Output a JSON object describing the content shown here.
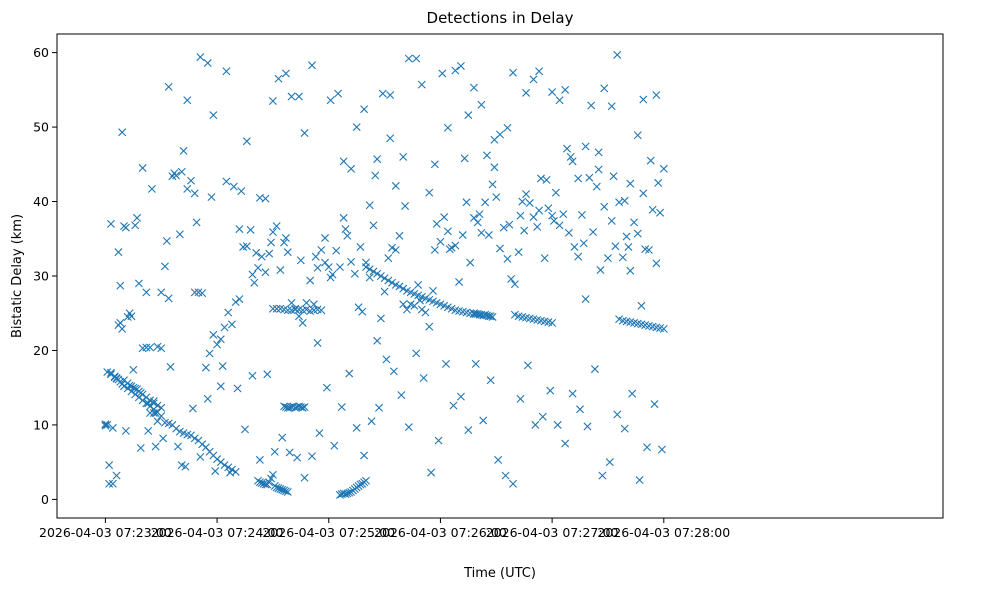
{
  "chart_data": {
    "type": "scatter",
    "title": "Detections in Delay",
    "xlabel": "Time (UTC)",
    "ylabel": "Bistatic Delay (km)",
    "x_unit": "seconds after 2026-04-03 07:23:00",
    "xlim": [
      -26,
      450
    ],
    "ylim": [
      -2.5,
      62.5
    ],
    "x_ticks": [
      {
        "value": 0,
        "label": "2026-04-03 07:23:00"
      },
      {
        "value": 60,
        "label": "2026-04-03 07:24:00"
      },
      {
        "value": 120,
        "label": "2026-04-03 07:25:00"
      },
      {
        "value": 180,
        "label": "2026-04-03 07:26:00"
      },
      {
        "value": 240,
        "label": "2026-04-03 07:27:00"
      },
      {
        "value": 300,
        "label": "2026-04-03 07:28:00"
      }
    ],
    "y_ticks": [
      0,
      10,
      20,
      30,
      40,
      50,
      60
    ],
    "marker": "x",
    "color": "#1f77b4",
    "grid": false,
    "legend": "none",
    "series": [
      {
        "x": [
          0,
          0,
          1,
          2,
          3,
          4,
          5,
          6,
          7,
          8,
          9,
          10,
          11,
          12,
          13,
          14,
          15,
          16,
          17,
          18,
          19,
          20,
          22,
          24,
          26,
          28,
          30,
          1,
          3,
          5,
          6,
          7,
          8,
          9,
          10,
          12,
          14,
          16,
          18,
          20,
          22,
          24,
          26,
          28,
          30,
          20,
          22,
          24,
          26,
          28,
          32,
          34,
          36,
          38,
          40,
          42,
          44,
          46,
          48,
          50,
          52,
          54,
          56,
          58,
          60,
          62,
          64,
          66,
          68,
          70,
          82,
          83,
          84,
          85,
          86,
          87,
          88,
          89,
          90,
          91,
          92,
          93,
          94,
          95,
          96,
          97,
          98,
          90,
          92,
          94,
          96,
          98,
          100,
          102,
          104,
          106,
          108,
          110,
          112,
          114,
          116,
          96,
          97,
          98,
          99,
          100,
          101,
          102,
          103,
          104,
          105,
          106,
          107,
          126,
          127,
          128,
          129,
          130,
          131,
          132,
          133,
          134,
          135,
          136,
          137,
          138,
          139,
          140,
          140,
          142,
          144,
          146,
          148,
          150,
          152,
          154,
          156,
          158,
          160,
          162,
          164,
          166,
          168,
          170,
          172,
          174,
          176,
          178,
          180,
          182,
          184,
          186,
          188,
          190,
          192,
          194,
          196,
          198,
          198,
          199,
          200,
          201,
          202,
          203,
          204,
          205,
          206,
          207,
          208,
          220,
          222,
          224,
          226,
          228,
          230,
          232,
          234,
          236,
          238,
          240,
          276,
          278,
          280,
          282,
          284,
          286,
          288,
          290,
          292,
          294,
          296,
          298,
          300,
          5,
          8,
          12,
          14,
          18,
          22,
          24,
          26,
          28,
          30,
          32,
          34,
          36,
          38,
          40,
          42,
          44,
          46,
          48,
          50,
          52,
          54,
          56,
          58,
          60,
          62,
          64,
          66,
          68,
          70,
          72,
          74,
          76,
          78,
          80,
          82,
          84,
          86,
          88,
          90,
          92,
          94,
          96,
          98,
          100,
          102,
          104,
          106,
          108,
          110,
          112,
          114,
          116,
          118,
          120,
          122,
          124,
          126,
          128,
          130,
          132,
          134,
          136,
          138,
          140,
          142,
          144,
          146,
          148,
          150,
          152,
          154,
          156,
          158,
          160,
          162,
          164,
          166,
          168,
          170,
          172,
          174,
          176,
          178,
          180,
          182,
          184,
          186,
          188,
          190,
          192,
          194,
          196,
          198,
          200,
          202,
          204,
          206,
          208,
          210,
          212,
          214,
          216,
          218,
          220,
          222,
          224,
          226,
          228,
          230,
          232,
          234,
          236,
          238,
          240,
          242,
          244,
          246,
          248,
          250,
          252,
          254,
          256,
          258,
          260,
          262,
          264,
          266,
          268,
          270,
          272,
          274,
          276,
          278,
          280,
          282,
          284,
          286,
          288,
          290,
          292,
          294,
          296,
          298,
          300,
          3,
          7,
          11,
          15,
          19,
          23,
          27,
          31,
          35,
          39,
          43,
          47,
          51,
          55,
          59,
          63,
          67,
          71,
          75,
          79,
          83,
          87,
          91,
          95,
          99,
          103,
          107,
          111,
          115,
          119,
          123,
          127,
          131,
          135,
          139,
          143,
          147,
          151,
          155,
          159,
          163,
          167,
          171,
          175,
          179,
          183,
          187,
          191,
          195,
          199,
          203,
          207,
          211,
          215,
          219,
          223,
          227,
          231,
          235,
          239,
          243,
          247,
          251,
          255,
          259,
          263,
          267,
          271,
          275,
          279,
          283,
          287,
          291,
          295,
          299,
          2,
          9,
          16,
          23,
          30,
          37,
          44,
          51,
          58,
          65,
          72,
          79,
          86,
          93,
          100,
          107,
          114,
          121,
          128,
          135,
          142,
          149,
          156,
          163,
          170,
          177,
          184,
          191,
          198,
          205,
          212,
          219,
          226,
          233,
          240,
          247,
          254,
          261,
          268,
          275,
          282,
          289,
          296,
          6,
          13,
          20,
          27,
          34,
          41,
          48,
          55,
          62,
          69,
          76,
          83,
          90,
          97,
          104,
          111,
          118,
          125,
          132,
          139,
          146,
          153,
          160,
          167,
          174,
          181,
          188,
          195,
          202,
          209,
          216,
          223,
          230,
          237,
          244,
          251,
          258,
          265,
          272,
          279,
          286,
          293,
          4,
          10,
          17,
          25,
          33,
          41,
          49,
          57,
          65,
          73,
          81,
          89,
          97,
          105,
          113,
          121,
          129,
          137,
          145,
          153,
          161,
          169,
          177,
          185,
          193,
          201,
          209,
          217,
          225,
          233,
          241,
          249,
          257,
          265,
          273,
          281,
          289,
          297
        ],
        "y": [
          10.1,
          9.9,
          17.1,
          4.6,
          16.8,
          2.1,
          16.4,
          16.2,
          23.4,
          28.7,
          22.9,
          16.0,
          36.5,
          15.6,
          15.3,
          15.2,
          15.0,
          14.9,
          14.8,
          14.5,
          14.3,
          14.1,
          13.7,
          13.3,
          12.9,
          12.6,
          12.3,
          10.0,
          17.0,
          16.5,
          16.3,
          16.1,
          15.8,
          15.5,
          15.2,
          14.9,
          14.5,
          14.1,
          13.7,
          13.3,
          12.9,
          12.5,
          12.1,
          11.7,
          11.2,
          20.3,
          20.4,
          20.4,
          11.6,
          10.5,
          10.3,
          10.2,
          10.0,
          9.5,
          9.1,
          8.9,
          8.7,
          8.6,
          8.2,
          7.9,
          7.4,
          7.0,
          6.4,
          5.9,
          5.4,
          5.0,
          4.6,
          4.3,
          4.0,
          3.7,
          2.5,
          2.3,
          2.2,
          2.1,
          2.0,
          2.0,
          2.3,
          2.8,
          3.3,
          1.8,
          1.6,
          1.5,
          1.4,
          1.3,
          1.2,
          1.1,
          1.0,
          25.6,
          25.6,
          25.6,
          25.5,
          25.4,
          25.4,
          25.5,
          25.5,
          25.4,
          25.5,
          25.3,
          25.4,
          25.5,
          25.4,
          12.5,
          12.4,
          12.3,
          12.3,
          12.4,
          12.5,
          12.3,
          12.4,
          12.5,
          12.4,
          12.3,
          12.4,
          0.6,
          0.7,
          0.8,
          0.7,
          0.8,
          0.9,
          1.0,
          1.2,
          1.4,
          1.6,
          1.8,
          2.0,
          2.1,
          2.3,
          2.5,
          31.2,
          30.9,
          30.6,
          30.3,
          30.0,
          29.7,
          29.4,
          29.1,
          28.8,
          28.6,
          28.3,
          28.0,
          27.8,
          27.6,
          27.4,
          27.2,
          27.0,
          26.8,
          26.6,
          26.4,
          26.2,
          26.0,
          25.8,
          25.6,
          25.4,
          25.3,
          25.2,
          25.1,
          25.0,
          24.9,
          25.0,
          24.9,
          24.9,
          24.8,
          24.8,
          24.7,
          24.8,
          24.7,
          24.6,
          24.6,
          24.5,
          24.8,
          24.6,
          24.5,
          24.4,
          24.3,
          24.2,
          24.1,
          24.0,
          23.9,
          23.8,
          23.7,
          24.2,
          24.0,
          23.9,
          23.8,
          23.7,
          23.6,
          23.5,
          23.4,
          23.3,
          23.2,
          23.1,
          23.0,
          22.9,
          16.5,
          23.7,
          24.5,
          24.6,
          29.0,
          27.8,
          11.6,
          13.2,
          20.5,
          20.3,
          31.3,
          27.0,
          43.4,
          43.5,
          35.6,
          46.8,
          41.7,
          42.8,
          27.8,
          27.8,
          27.7,
          17.7,
          19.6,
          22.1,
          20.8,
          21.5,
          23.1,
          25.1,
          23.5,
          26.5,
          26.9,
          33.9,
          34.0,
          36.2,
          29.1,
          31.1,
          32.6,
          30.5,
          33.0,
          35.9,
          36.7,
          30.8,
          34.5,
          33.2,
          26.4,
          25.6,
          24.6,
          23.7,
          26.4,
          29.4,
          26.2,
          21.0,
          33.5,
          35.1,
          31.2,
          30.2,
          33.4,
          31.2,
          37.8,
          35.4,
          31.9,
          30.3,
          25.8,
          25.2,
          31.8,
          29.8,
          36.8,
          21.3,
          24.3,
          27.9,
          32.4,
          33.8,
          33.5,
          35.4,
          26.2,
          25.5,
          26.2,
          26.0,
          28.8,
          25.5,
          25.1,
          23.2,
          28.0,
          37.0,
          34.6,
          37.9,
          36.0,
          33.8,
          34.1,
          29.2,
          35.5,
          39.9,
          31.8,
          37.8,
          37.2,
          35.8,
          39.9,
          35.5,
          42.3,
          40.6,
          33.7,
          36.5,
          32.3,
          29.6,
          28.9,
          33.2,
          40.0,
          41.0,
          39.8,
          37.9,
          36.6,
          43.1,
          32.4,
          39.1,
          38.1,
          41.2,
          36.8,
          38.3,
          47.1,
          46.0,
          33.9,
          32.6,
          38.2,
          26.9,
          43.2,
          35.9,
          42.0,
          30.8,
          39.3,
          32.4,
          37.4,
          34.0,
          39.9,
          32.5,
          35.3,
          30.7,
          37.2,
          35.7,
          26.0,
          33.6,
          33.5,
          38.9,
          31.7,
          38.5,
          44.4,
          37.0,
          33.2,
          9.2,
          17.4,
          6.9,
          12.9,
          11.6,
          8.2,
          17.8,
          7.1,
          4.4,
          12.2,
          5.7,
          13.5,
          3.8,
          17.9,
          3.6,
          14.9,
          9.4,
          16.6,
          5.3,
          16.8,
          6.4,
          8.3,
          6.3,
          5.6,
          2.9,
          5.8,
          8.9,
          15.0,
          7.2,
          12.4,
          16.9,
          9.6,
          5.9,
          10.5,
          12.3,
          18.8,
          17.2,
          14.0,
          9.7,
          19.6,
          16.3,
          3.6,
          7.9,
          18.2,
          12.6,
          13.8,
          9.3,
          18.2,
          10.6,
          16.0,
          5.3,
          3.2,
          2.1,
          13.5,
          18.0,
          10.0,
          11.1,
          14.6,
          10.0,
          7.5,
          14.2,
          12.1,
          9.8,
          17.5,
          3.2,
          5.0,
          11.4,
          9.5,
          14.2,
          2.6,
          7.0,
          12.8,
          6.7,
          2.1,
          49.3,
          36.8,
          9.2,
          27.8,
          43.8,
          53.6,
          59.4,
          51.6,
          57.5,
          36.3,
          30.2,
          40.4,
          56.5,
          54.1,
          49.2,
          31.1,
          53.6,
          45.4,
          50.0,
          39.5,
          54.5,
          42.1,
          59.2,
          55.7,
          45.0,
          49.9,
          58.2,
          55.3,
          46.2,
          49.0,
          57.3,
          54.6,
          57.5,
          54.7,
          55.0,
          43.1,
          52.9,
          55.2,
          59.7,
          42.4,
          53.7,
          54.3,
          3.2,
          25.0,
          44.5,
          7.1,
          55.4,
          4.6,
          41.1,
          58.6,
          15.2,
          42.0,
          48.1,
          40.5,
          53.5,
          57.2,
          54.1,
          58.3,
          31.8,
          54.5,
          44.4,
          52.4,
          45.7,
          54.3,
          46.0,
          59.2,
          41.2,
          57.2,
          57.6,
          51.6,
          53.0,
          48.3,
          49.9,
          38.1,
          56.4,
          42.9,
          53.6,
          45.4,
          47.4,
          44.3,
          52.8,
          40.1,
          48.9,
          45.5,
          9.6,
          36.7,
          37.8,
          41.7,
          34.7,
          44.0,
          37.2,
          40.6,
          42.7,
          41.4,
          33.1,
          34.5,
          35.1,
          32.1,
          32.6,
          29.8,
          36.3,
          33.9,
          43.5,
          48.5,
          39.4,
          26.7,
          33.5,
          33.6,
          45.8,
          38.3,
          44.6,
          36.9,
          36.1,
          38.8,
          37.4,
          35.8,
          34.4,
          46.6,
          43.4,
          33.9,
          41.1,
          42.5
        ]
      }
    ]
  }
}
